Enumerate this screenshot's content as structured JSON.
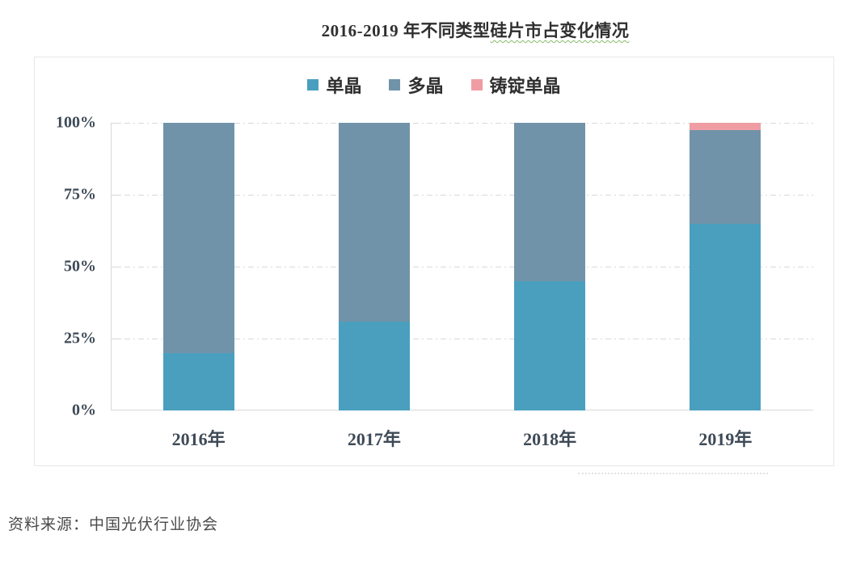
{
  "page": {
    "title_prefix": "2016-2019 年不同类型",
    "title_underlined": "硅片市占变化情况",
    "source": "资料来源：中国光伏行业协会"
  },
  "chart_data": {
    "type": "bar",
    "stacked": true,
    "title": "2016-2019 年不同类型硅片市占变化情况",
    "categories": [
      "2016年",
      "2017年",
      "2018年",
      "2019年"
    ],
    "series": [
      {
        "name": "单晶",
        "color": "#4A9FBE",
        "values": [
          20,
          31,
          45,
          65
        ]
      },
      {
        "name": "多晶",
        "color": "#7193A9",
        "values": [
          80,
          69,
          55,
          32.5
        ]
      },
      {
        "name": "铸锭单晶",
        "color": "#EF9DA3",
        "values": [
          0,
          0,
          0,
          2.5
        ]
      }
    ],
    "unit": "%",
    "ylim": [
      0,
      100
    ],
    "y_ticks": [
      {
        "label": "0%",
        "value": 0
      },
      {
        "label": "25%",
        "value": 25
      },
      {
        "label": "50%",
        "value": 50
      },
      {
        "label": "75%",
        "value": 75
      },
      {
        "label": "100%",
        "value": 100
      }
    ],
    "xlabel": "",
    "ylabel": "",
    "grid": "horizontal-dashed",
    "legend_position": "top-center",
    "source": "资料来源：中国光伏行业协会",
    "colors": {
      "axis": "#D9D9D9",
      "tick_label": "#3E4A57",
      "title_underline": "#86BB6A"
    }
  }
}
